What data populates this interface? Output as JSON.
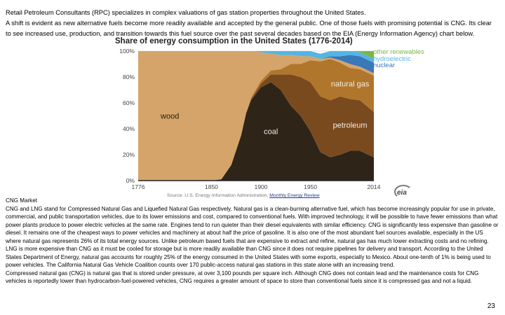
{
  "intro": {
    "p1": "Retail Petroleum Consultants (RPC) specializes in complex valuations of gas station properties throughout the United States.",
    "p2": "A shift is evident as new alternative fuels become more readily available and accepted by the general public.  One of those fuels with promising potential is CNG.  Its clear to see increased use, production, and transition towards this fuel source over the past several decades based on the EIA (Energy Information Agency) chart below."
  },
  "chart_data": {
    "type": "area",
    "stacked": true,
    "title": "Share of energy consumption  in the United States (1776-2014)",
    "xlabel": "",
    "ylabel": "",
    "x_ticks": [
      "1776",
      "1850",
      "1900",
      "1950",
      "2014"
    ],
    "y_ticks": [
      "0%",
      "20%",
      "40%",
      "60%",
      "80%",
      "100%"
    ],
    "ylim": [
      0,
      100
    ],
    "years": [
      1776,
      1850,
      1860,
      1870,
      1880,
      1885,
      1890,
      1900,
      1910,
      1920,
      1930,
      1940,
      1950,
      1960,
      1970,
      1980,
      1990,
      2000,
      2014
    ],
    "series": [
      {
        "name": "coal",
        "color": "#2e2418",
        "values": [
          0,
          0,
          1,
          12,
          35,
          52,
          62,
          72,
          76,
          70,
          58,
          50,
          38,
          22,
          18,
          20,
          23,
          23,
          18
        ]
      },
      {
        "name": "petroleum",
        "color": "#7a4a1f",
        "values": [
          0,
          0,
          0,
          0,
          0,
          0,
          1,
          3,
          6,
          12,
          24,
          30,
          38,
          43,
          44,
          45,
          40,
          39,
          35
        ]
      },
      {
        "name": "natural gas",
        "color": "#b0762c",
        "values": [
          0,
          0,
          0,
          0,
          0,
          0,
          1,
          2,
          3,
          4,
          8,
          10,
          17,
          27,
          32,
          26,
          24,
          24,
          28
        ]
      },
      {
        "name": "wood",
        "color": "#d4a46a",
        "values": [
          100,
          100,
          99,
          88,
          65,
          48,
          36,
          22,
          13,
          11,
          7,
          6,
          3,
          2,
          1,
          2,
          3,
          2,
          2
        ]
      },
      {
        "name": "nuclear",
        "color": "#3b77b9",
        "values": [
          0,
          0,
          0,
          0,
          0,
          0,
          0,
          0,
          0,
          0,
          0,
          0,
          0,
          0,
          1,
          3,
          7,
          8,
          8
        ]
      },
      {
        "name": "hydroelectric",
        "color": "#52b6e3",
        "values": [
          0,
          0,
          0,
          0,
          0,
          0,
          0,
          1,
          2,
          3,
          3,
          4,
          4,
          4,
          4,
          4,
          3,
          3,
          3
        ]
      },
      {
        "name": "other renewables",
        "color": "#7ab648",
        "values": [
          0,
          0,
          0,
          0,
          0,
          0,
          0,
          0,
          0,
          0,
          0,
          0,
          0,
          0,
          0,
          0,
          0,
          1,
          6
        ]
      }
    ],
    "area_labels": [
      {
        "series": "wood",
        "text": "wood"
      },
      {
        "series": "coal",
        "text": "coal"
      },
      {
        "series": "natural gas",
        "text": "natural gas"
      },
      {
        "series": "petroleum",
        "text": "petroleum"
      }
    ],
    "legend": [
      "other renewables",
      "hydroelectric",
      "nuclear"
    ],
    "legend_colors": [
      "#7ab648",
      "#52b6e3",
      "#3b77b9"
    ],
    "grid": true
  },
  "source": {
    "text": "Source: U.S. Energy Information Administration,",
    "link": "Monthly Energy Review"
  },
  "logo_text": "eia",
  "body": {
    "heading": "CNG Market",
    "p1": "CNG and LNG stand for Compressed Natural Gas and Liquefied Natural Gas respectively.  Natural gas is a clean-burning alternative fuel, which has become increasingly popular for use in private, commercial, and public transportation vehicles, due to its lower emissions and cost, compared to conventional fuels.  With improved technology, it will be possible to have fewer emissions than what power plants produce to power electric vehicles at the same rate.  Engines tend to run quieter than their diesel equivalents with similar efficiency.  CNG is significantly less expensive than gasoline or diesel. It remains one of the cheapest ways to power vehicles and machinery at about half the price of gasoline.  It is also one of the most abundant fuel sources available, especially in the US where natural gas represents 26% of its total energy sources. Unlike petroleum based fuels that are expensive to extract and refine, natural gas has much lower extracting costs and no refining.  LNG is more expensive than CNG as it must be cooled for storage but is more readily available than CNG since it does not require pipelines for delivery and transport. According to the United States Department of Energy, natural gas accounts for roughly 25% of the energy consumed in the United States with some exports, especially to Mexico.  About one-tenth of 1% is being used to power vehicles.  The California Natural Gas Vehicle Coalition counts over 170 public-access natural gas stations in this state alone with an increasing trend.",
    "p2": "Compressed natural gas (CNG) is natural gas that is stored under pressure, at over 3,100 pounds per square inch.  Although CNG does not contain lead and the maintenance costs for CNG vehicles is reportedly lower than hydrocarbon-fuel-powered vehicles, CNG requires a greater amount of space to store than conventional fuels since it is compressed gas and not a liquid."
  },
  "page_number": "23"
}
